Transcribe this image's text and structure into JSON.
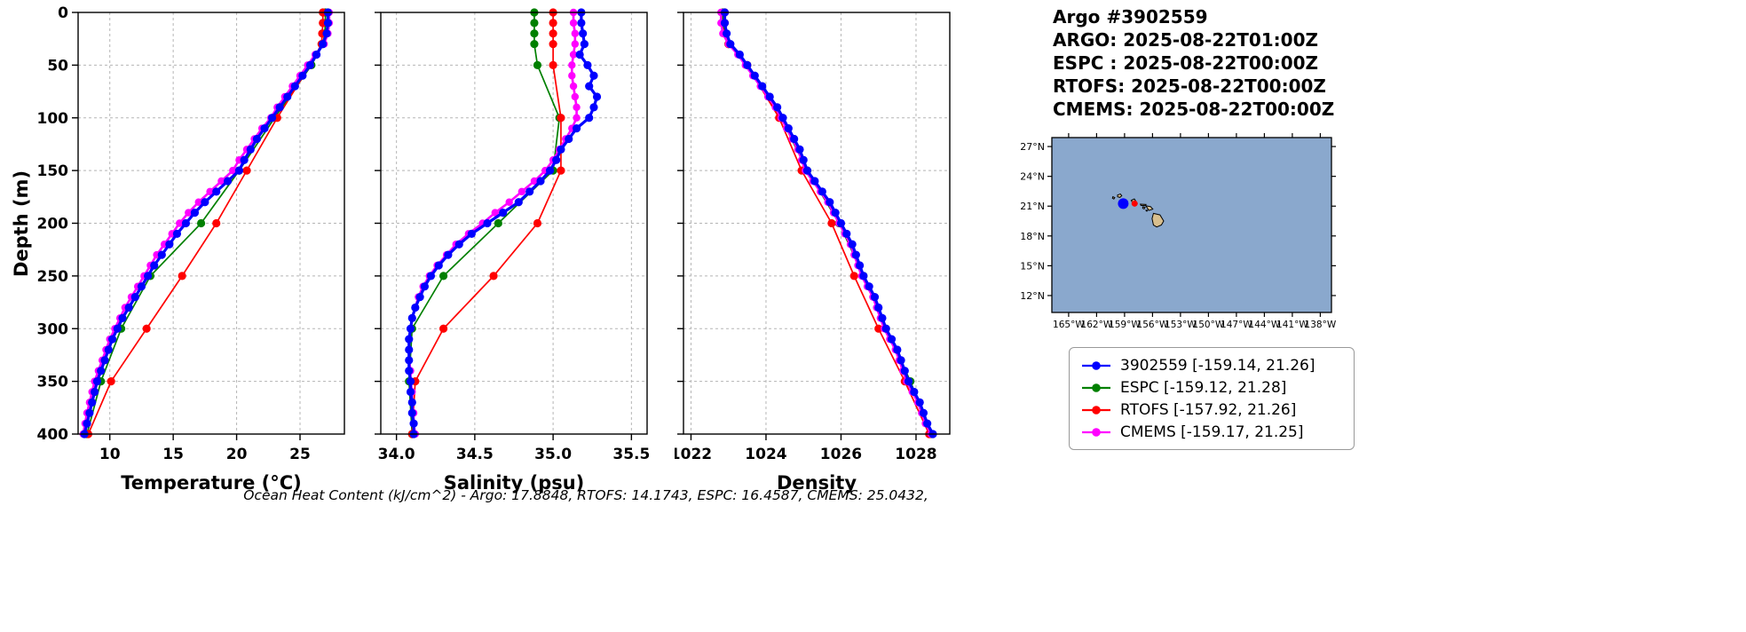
{
  "info": {
    "title": "Argo #3902559",
    "lines": [
      "ARGO: 2025-08-22T01:00Z",
      "ESPC : 2025-08-22T00:00Z",
      "RTOFS: 2025-08-22T00:00Z",
      "CMEMS: 2025-08-22T00:00Z"
    ]
  },
  "footer": {
    "ohc": "Ocean Heat Content (kJ/cm^2) - Argo: 17.8848,  RTOFS: 14.1743,  ESPC: 16.4587,  CMEMS: 25.0432,"
  },
  "legend": {
    "items": [
      {
        "label": "3902559 [-159.14, 21.26]",
        "color": "#0000ff"
      },
      {
        "label": "ESPC [-159.12, 21.28]",
        "color": "#008000"
      },
      {
        "label": "RTOFS [-157.92, 21.26]",
        "color": "#ff0000"
      },
      {
        "label": "CMEMS [-159.17, 21.25]",
        "color": "#ff00ff"
      }
    ]
  },
  "map": {
    "extent": {
      "lon_min": -166.8,
      "lon_max": -136.8,
      "lat_min": 10.3,
      "lat_max": 27.9
    },
    "ocean_color": "#8aa8cd",
    "land_color": "#d8bf8e",
    "lon_ticks": [
      -165,
      -162,
      -159,
      -156,
      -153,
      -150,
      -147,
      -144,
      -141,
      -138
    ],
    "lon_tick_labels": [
      "165°W",
      "162°W",
      "159°W",
      "156°W",
      "153°W",
      "150°W",
      "147°W",
      "144°W",
      "141°W",
      "138°W"
    ],
    "lat_ticks": [
      12,
      15,
      18,
      21,
      24,
      27
    ],
    "lat_tick_labels": [
      "12°N",
      "15°N",
      "18°N",
      "21°N",
      "24°N",
      "27°N"
    ],
    "markers": [
      {
        "name": "3902559",
        "lon": -159.14,
        "lat": 21.26,
        "color": "#0000ff",
        "size": 6
      },
      {
        "name": "ESPC",
        "lon": -159.12,
        "lat": 21.28,
        "color": "#008000",
        "size": 3.5
      },
      {
        "name": "RTOFS",
        "lon": -157.92,
        "lat": 21.26,
        "color": "#ff0000",
        "size": 3.5
      },
      {
        "name": "CMEMS",
        "lon": -159.17,
        "lat": 21.25,
        "color": "#ff00ff",
        "size": 3.5
      }
    ],
    "islands": [
      {
        "name": "Kauai",
        "poly": [
          [
            -159.75,
            22.12
          ],
          [
            -159.45,
            22.22
          ],
          [
            -159.3,
            22.05
          ],
          [
            -159.5,
            21.88
          ],
          [
            -159.75,
            21.95
          ]
        ]
      },
      {
        "name": "Niihau",
        "poly": [
          [
            -160.25,
            21.95
          ],
          [
            -160.05,
            21.85
          ],
          [
            -160.15,
            21.72
          ],
          [
            -160.3,
            21.8
          ]
        ]
      },
      {
        "name": "Oahu",
        "poly": [
          [
            -158.28,
            21.58
          ],
          [
            -157.95,
            21.72
          ],
          [
            -157.65,
            21.3
          ],
          [
            -158.1,
            21.25
          ]
        ]
      },
      {
        "name": "Molokai",
        "poly": [
          [
            -157.3,
            21.2
          ],
          [
            -156.7,
            21.17
          ],
          [
            -156.75,
            21.05
          ],
          [
            -157.25,
            21.08
          ]
        ]
      },
      {
        "name": "Lanai",
        "poly": [
          [
            -157.05,
            20.93
          ],
          [
            -156.8,
            20.88
          ],
          [
            -156.9,
            20.72
          ],
          [
            -157.05,
            20.78
          ]
        ]
      },
      {
        "name": "Maui",
        "poly": [
          [
            -156.7,
            21.03
          ],
          [
            -156.2,
            20.95
          ],
          [
            -155.97,
            20.7
          ],
          [
            -156.4,
            20.57
          ],
          [
            -156.55,
            20.8
          ]
        ]
      },
      {
        "name": "Kahoolawe",
        "poly": [
          [
            -156.7,
            20.59
          ],
          [
            -156.54,
            20.58
          ],
          [
            -156.6,
            20.49
          ],
          [
            -156.68,
            20.52
          ]
        ]
      },
      {
        "name": "Hawaii",
        "poly": [
          [
            -155.9,
            20.27
          ],
          [
            -155.2,
            20.12
          ],
          [
            -154.8,
            19.5
          ],
          [
            -155.05,
            19.1
          ],
          [
            -155.55,
            18.9
          ],
          [
            -155.9,
            19.1
          ],
          [
            -156.05,
            19.75
          ]
        ]
      }
    ]
  },
  "chart_data": {
    "type": "line",
    "profile": true,
    "ylabel": "Depth (m)",
    "ylim": [
      0,
      400
    ],
    "yticks": [
      0,
      50,
      100,
      150,
      200,
      250,
      300,
      350,
      400
    ],
    "grid": "dashed",
    "depths_dense": [
      0,
      10,
      20,
      30,
      40,
      50,
      60,
      70,
      80,
      90,
      100,
      110,
      120,
      130,
      140,
      150,
      160,
      170,
      180,
      190,
      200,
      210,
      220,
      230,
      240,
      250,
      260,
      270,
      280,
      290,
      300,
      310,
      320,
      330,
      340,
      350,
      360,
      370,
      380,
      390,
      400
    ],
    "depths_sparse": [
      0,
      10,
      20,
      30,
      50,
      100,
      150,
      200,
      250,
      300,
      350,
      400
    ],
    "panels": [
      {
        "xlabel": "Temperature (°C)",
        "xlim": [
          7.5,
          28.5
        ],
        "xticks": [
          10,
          15,
          20,
          25
        ],
        "xtick_labels": [
          "10",
          "15",
          "20",
          "25"
        ],
        "series": [
          {
            "name": "ESPC",
            "color": "#008000",
            "depths": "sparse",
            "lw": 1.7,
            "ms": 4.6,
            "values": [
              27.0,
              27.0,
              26.95,
              26.8,
              25.9,
              23.0,
              20.2,
              17.2,
              13.2,
              10.9,
              9.3,
              8.2
            ]
          },
          {
            "name": "RTOFS",
            "color": "#ff0000",
            "depths": "sparse",
            "lw": 1.7,
            "ms": 4.6,
            "values": [
              26.8,
              26.8,
              26.75,
              26.7,
              25.8,
              23.2,
              20.8,
              18.4,
              15.7,
              12.9,
              10.1,
              8.3
            ]
          },
          {
            "name": "CMEMS",
            "color": "#ff00ff",
            "depths": "dense",
            "lw": 2.6,
            "ms": 4.2,
            "values": [
              27.3,
              27.3,
              27.2,
              26.9,
              26.2,
              25.6,
              25.0,
              24.4,
              23.8,
              23.2,
              22.7,
              22.0,
              21.4,
              20.8,
              20.2,
              19.7,
              18.8,
              17.9,
              17.0,
              16.2,
              15.5,
              14.9,
              14.3,
              13.7,
              13.2,
              12.7,
              12.2,
              11.7,
              11.2,
              10.8,
              10.4,
              10.0,
              9.7,
              9.4,
              9.1,
              8.8,
              8.6,
              8.4,
              8.2,
              8.05,
              7.9
            ]
          },
          {
            "name": "3902559",
            "color": "#0000ff",
            "depths": "dense",
            "lw": 3.2,
            "ms": 4.6,
            "values": [
              27.2,
              27.2,
              27.1,
              26.8,
              26.3,
              25.8,
              25.2,
              24.6,
              24.0,
              23.4,
              22.8,
              22.2,
              21.6,
              21.1,
              20.6,
              20.2,
              19.3,
              18.4,
              17.5,
              16.7,
              16.0,
              15.3,
              14.7,
              14.1,
              13.5,
              13.0,
              12.5,
              12.0,
              11.5,
              11.0,
              10.6,
              10.2,
              9.9,
              9.6,
              9.3,
              9.0,
              8.8,
              8.6,
              8.4,
              8.2,
              8.0
            ]
          }
        ]
      },
      {
        "xlabel": "Salinity (psu)",
        "xlim": [
          33.9,
          35.6
        ],
        "xticks": [
          34.0,
          34.5,
          35.0,
          35.5
        ],
        "xtick_labels": [
          "34.0",
          "34.5",
          "35.0",
          "35.5"
        ],
        "series": [
          {
            "name": "ESPC",
            "color": "#008000",
            "depths": "sparse",
            "lw": 1.7,
            "ms": 4.6,
            "values": [
              34.88,
              34.88,
              34.88,
              34.88,
              34.9,
              35.04,
              35.0,
              34.65,
              34.3,
              34.1,
              34.08,
              34.1
            ]
          },
          {
            "name": "RTOFS",
            "color": "#ff0000",
            "depths": "sparse",
            "lw": 1.7,
            "ms": 4.6,
            "values": [
              35.0,
              35.0,
              35.0,
              35.0,
              35.0,
              35.05,
              35.05,
              34.9,
              34.62,
              34.3,
              34.12,
              34.1
            ]
          },
          {
            "name": "CMEMS",
            "color": "#ff00ff",
            "depths": "dense",
            "lw": 2.6,
            "ms": 4.2,
            "values": [
              35.13,
              35.13,
              35.14,
              35.14,
              35.13,
              35.12,
              35.12,
              35.13,
              35.14,
              35.15,
              35.15,
              35.12,
              35.08,
              35.04,
              35.0,
              34.95,
              34.88,
              34.8,
              34.72,
              34.63,
              34.55,
              34.46,
              34.38,
              34.32,
              34.26,
              34.21,
              34.17,
              34.14,
              34.12,
              34.1,
              34.09,
              34.08,
              34.08,
              34.08,
              34.09,
              34.09,
              34.1,
              34.1,
              34.11,
              34.11,
              34.12
            ]
          },
          {
            "name": "3902559",
            "color": "#0000ff",
            "depths": "dense",
            "lw": 3.2,
            "ms": 4.6,
            "values": [
              35.18,
              35.18,
              35.19,
              35.2,
              35.17,
              35.22,
              35.26,
              35.23,
              35.28,
              35.26,
              35.23,
              35.15,
              35.1,
              35.05,
              35.02,
              34.98,
              34.92,
              34.85,
              34.78,
              34.68,
              34.58,
              34.48,
              34.4,
              34.33,
              34.27,
              34.22,
              34.18,
              34.15,
              34.12,
              34.1,
              34.09,
              34.08,
              34.08,
              34.08,
              34.08,
              34.09,
              34.09,
              34.1,
              34.1,
              34.11,
              34.11
            ]
          }
        ]
      },
      {
        "xlabel": "Density",
        "xlim": [
          1021.8,
          1028.9
        ],
        "xticks": [
          1022,
          1024,
          1026,
          1028
        ],
        "xtick_labels": [
          "1022",
          "1024",
          "1026",
          "1028"
        ],
        "series": [
          {
            "name": "ESPC",
            "color": "#008000",
            "depths": "sparse",
            "lw": 1.7,
            "ms": 4.6,
            "values": [
              1022.85,
              1022.85,
              1022.9,
              1023.0,
              1023.5,
              1024.4,
              1025.1,
              1025.95,
              1026.6,
              1027.2,
              1027.85,
              1028.4
            ]
          },
          {
            "name": "RTOFS",
            "color": "#ff0000",
            "depths": "sparse",
            "lw": 1.7,
            "ms": 4.6,
            "values": [
              1022.9,
              1022.9,
              1022.9,
              1023.0,
              1023.5,
              1024.35,
              1024.95,
              1025.75,
              1026.35,
              1027.0,
              1027.7,
              1028.35
            ]
          },
          {
            "name": "CMEMS",
            "color": "#ff00ff",
            "depths": "dense",
            "lw": 2.6,
            "ms": 4.2,
            "values": [
              1022.8,
              1022.8,
              1022.85,
              1023.0,
              1023.25,
              1023.45,
              1023.65,
              1023.85,
              1024.05,
              1024.25,
              1024.4,
              1024.55,
              1024.7,
              1024.85,
              1024.95,
              1025.05,
              1025.25,
              1025.45,
              1025.65,
              1025.8,
              1025.95,
              1026.1,
              1026.25,
              1026.35,
              1026.45,
              1026.55,
              1026.7,
              1026.85,
              1026.95,
              1027.05,
              1027.15,
              1027.3,
              1027.45,
              1027.55,
              1027.65,
              1027.75,
              1027.9,
              1028.05,
              1028.15,
              1028.25,
              1028.4
            ]
          },
          {
            "name": "3902559",
            "color": "#0000ff",
            "depths": "dense",
            "lw": 3.2,
            "ms": 4.6,
            "values": [
              1022.9,
              1022.9,
              1022.95,
              1023.05,
              1023.3,
              1023.5,
              1023.7,
              1023.9,
              1024.1,
              1024.3,
              1024.45,
              1024.6,
              1024.75,
              1024.9,
              1025.0,
              1025.1,
              1025.3,
              1025.5,
              1025.7,
              1025.85,
              1026.0,
              1026.15,
              1026.3,
              1026.4,
              1026.5,
              1026.6,
              1026.75,
              1026.9,
              1027.0,
              1027.1,
              1027.2,
              1027.35,
              1027.5,
              1027.6,
              1027.7,
              1027.8,
              1027.95,
              1028.1,
              1028.2,
              1028.3,
              1028.45
            ]
          }
        ]
      }
    ]
  }
}
